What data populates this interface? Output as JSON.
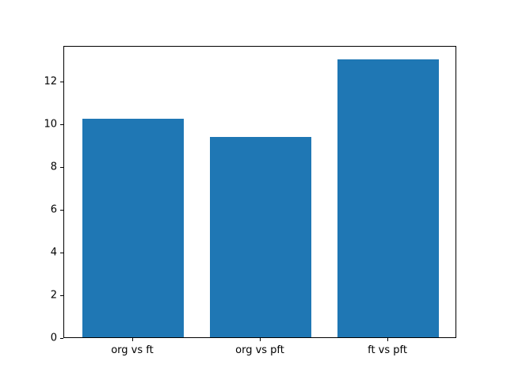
{
  "chart_data": {
    "type": "bar",
    "title": "",
    "xlabel": "",
    "ylabel": "",
    "categories": [
      "org vs ft",
      "org vs pft",
      "ft vs pft"
    ],
    "values": [
      10.2,
      9.35,
      13.0
    ],
    "bar_color": "#1f77b4",
    "ylim": [
      0,
      13.65
    ],
    "yticks": [
      0,
      2,
      4,
      6,
      8,
      10,
      12
    ],
    "xlim": [
      -0.54,
      2.54
    ],
    "bar_width_units": 0.8,
    "grid": false,
    "legend": null
  }
}
